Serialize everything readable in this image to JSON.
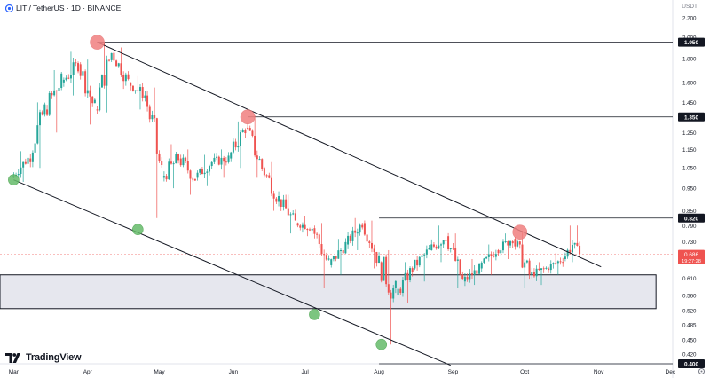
{
  "header": {
    "title": "LIT / TetherUS · 1D · BINANCE"
  },
  "branding": {
    "logo_text": "TradingView"
  },
  "price_axis": {
    "unit": "USDT"
  },
  "colors": {
    "up": "#26a69a",
    "down": "#ef5350",
    "trendline": "#131722",
    "marker_red": "#f08080",
    "marker_green": "#66bb6a",
    "support_zone": "#e6e7ee",
    "price_label_bg": "#ef5350"
  },
  "chart_data": {
    "type": "candlestick",
    "title": "LIT / TetherUS · 1D · BINANCE",
    "y_scale": "log",
    "ylim": [
      0.4,
      2.2
    ],
    "x_ticks": [
      "Mar",
      "Apr",
      "May",
      "Jun",
      "Jul",
      "Aug",
      "Sep",
      "Oct",
      "Nov",
      "Dec"
    ],
    "y_ticks": [
      2.2,
      2.0,
      1.8,
      1.6,
      1.45,
      1.35,
      1.25,
      1.15,
      1.05,
      0.95,
      0.85,
      0.79,
      0.73,
      0.66,
      0.61,
      0.56,
      0.52,
      0.485,
      0.45,
      0.42,
      0.4
    ],
    "y_tick_labels": [
      "2.200",
      "2.000",
      "1.800",
      "1.600",
      "1.450",
      "1.350",
      "1.250",
      "1.150",
      "1.050",
      "0.950",
      "0.850",
      "0.790",
      "0.730",
      "0.660",
      "0.610",
      "0.560",
      "0.520",
      "0.485",
      "0.450",
      "0.420",
      "0.400"
    ],
    "candles": [
      {
        "date": "Mar 01",
        "o": 1.0,
        "h": 1.14,
        "l": 0.98,
        "c": 1.1
      },
      {
        "date": "Mar 08",
        "o": 1.1,
        "h": 1.45,
        "l": 1.05,
        "c": 1.4
      },
      {
        "date": "Mar 15",
        "o": 1.4,
        "h": 1.7,
        "l": 1.25,
        "c": 1.6
      },
      {
        "date": "Mar 22",
        "o": 1.6,
        "h": 1.86,
        "l": 1.5,
        "c": 1.75
      },
      {
        "date": "Mar 29",
        "o": 1.75,
        "h": 1.79,
        "l": 1.3,
        "c": 1.4
      },
      {
        "date": "Apr 05",
        "o": 1.4,
        "h": 1.95,
        "l": 1.38,
        "c": 1.85
      },
      {
        "date": "Apr 12",
        "o": 1.85,
        "h": 1.9,
        "l": 1.55,
        "c": 1.6
      },
      {
        "date": "Apr 19",
        "o": 1.6,
        "h": 1.65,
        "l": 1.4,
        "c": 1.5
      },
      {
        "date": "Apr 26",
        "o": 1.5,
        "h": 1.56,
        "l": 0.82,
        "c": 1.0
      },
      {
        "date": "May 03",
        "o": 1.0,
        "h": 1.18,
        "l": 0.95,
        "c": 1.1
      },
      {
        "date": "May 10",
        "o": 1.1,
        "h": 1.15,
        "l": 0.92,
        "c": 1.0
      },
      {
        "date": "May 17",
        "o": 1.0,
        "h": 1.12,
        "l": 0.96,
        "c": 1.08
      },
      {
        "date": "May 24",
        "o": 1.08,
        "h": 1.15,
        "l": 1.0,
        "c": 1.1
      },
      {
        "date": "May 31",
        "o": 1.1,
        "h": 1.32,
        "l": 1.05,
        "c": 1.28
      },
      {
        "date": "Jun 07",
        "o": 1.28,
        "h": 1.36,
        "l": 1.0,
        "c": 1.05
      },
      {
        "date": "Jun 14",
        "o": 1.05,
        "h": 1.08,
        "l": 0.85,
        "c": 0.9
      },
      {
        "date": "Jun 21",
        "o": 0.9,
        "h": 0.92,
        "l": 0.76,
        "c": 0.8
      },
      {
        "date": "Jun 28",
        "o": 0.8,
        "h": 0.83,
        "l": 0.75,
        "c": 0.78
      },
      {
        "date": "Jul 05",
        "o": 0.78,
        "h": 0.8,
        "l": 0.58,
        "c": 0.65
      },
      {
        "date": "Jul 12",
        "o": 0.65,
        "h": 0.74,
        "l": 0.62,
        "c": 0.72
      },
      {
        "date": "Jul 19",
        "o": 0.72,
        "h": 0.82,
        "l": 0.7,
        "c": 0.8
      },
      {
        "date": "Jul 26",
        "o": 0.8,
        "h": 0.81,
        "l": 0.64,
        "c": 0.66
      },
      {
        "date": "Aug 02",
        "o": 0.66,
        "h": 0.7,
        "l": 0.44,
        "c": 0.56
      },
      {
        "date": "Aug 09",
        "o": 0.56,
        "h": 0.66,
        "l": 0.54,
        "c": 0.64
      },
      {
        "date": "Aug 16",
        "o": 0.64,
        "h": 0.72,
        "l": 0.6,
        "c": 0.7
      },
      {
        "date": "Aug 23",
        "o": 0.7,
        "h": 0.79,
        "l": 0.66,
        "c": 0.75
      },
      {
        "date": "Aug 30",
        "o": 0.75,
        "h": 0.76,
        "l": 0.58,
        "c": 0.6
      },
      {
        "date": "Sep 06",
        "o": 0.6,
        "h": 0.67,
        "l": 0.59,
        "c": 0.64
      },
      {
        "date": "Sep 13",
        "o": 0.64,
        "h": 0.72,
        "l": 0.62,
        "c": 0.7
      },
      {
        "date": "Sep 20",
        "o": 0.7,
        "h": 0.76,
        "l": 0.67,
        "c": 0.74
      },
      {
        "date": "Sep 27",
        "o": 0.74,
        "h": 0.77,
        "l": 0.58,
        "c": 0.62
      },
      {
        "date": "Oct 04",
        "o": 0.62,
        "h": 0.66,
        "l": 0.59,
        "c": 0.64
      },
      {
        "date": "Oct 11",
        "o": 0.64,
        "h": 0.69,
        "l": 0.62,
        "c": 0.67
      },
      {
        "date": "Oct 18",
        "o": 0.67,
        "h": 0.79,
        "l": 0.66,
        "c": 0.72
      },
      {
        "date": "Oct 22",
        "o": 0.72,
        "h": 0.79,
        "l": 0.68,
        "c": 0.686
      }
    ],
    "levels": [
      {
        "price": 1.95,
        "label": "1.950",
        "from": "Apr 05"
      },
      {
        "price": 1.35,
        "label": "1.350",
        "from": "Jun 07"
      },
      {
        "price": 0.82,
        "label": "0.820",
        "from": "Aug 01"
      },
      {
        "price": 0.4,
        "label": "0.400",
        "from": "Aug 01"
      }
    ],
    "support_zone": {
      "low": 0.525,
      "high": 0.62
    },
    "channel_upper": [
      {
        "date": "Apr 05",
        "price": 1.95
      },
      {
        "date": "Nov 02",
        "price": 0.645
      }
    ],
    "channel_lower": [
      {
        "date": "Mar 01",
        "price": 0.99
      },
      {
        "date": "Aug 31",
        "price": 0.397
      }
    ],
    "touch_points": [
      {
        "kind": "resistance",
        "date": "Apr 05",
        "price": 1.95
      },
      {
        "kind": "resistance",
        "date": "Jun 07",
        "price": 1.35
      },
      {
        "kind": "resistance",
        "date": "Sep 29",
        "price": 0.765
      },
      {
        "kind": "support",
        "date": "Mar 01",
        "price": 0.99
      },
      {
        "kind": "support",
        "date": "Apr 22",
        "price": 0.775
      },
      {
        "kind": "support",
        "date": "Jul 05",
        "price": 0.51
      },
      {
        "kind": "support",
        "date": "Aug 02",
        "price": 0.44
      }
    ],
    "last_price": {
      "value": 0.686,
      "label": "0.686",
      "countdown": "19:27:28"
    },
    "grid": false,
    "legend": "none"
  }
}
